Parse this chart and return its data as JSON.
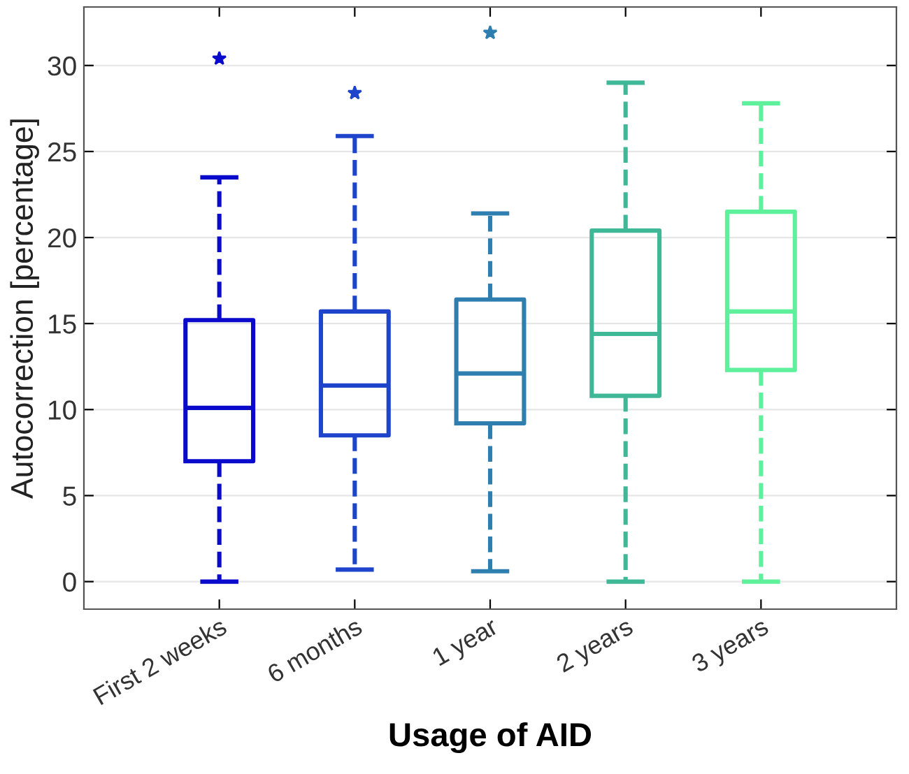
{
  "chart_data": {
    "type": "box",
    "xlabel": "Usage of AID",
    "ylabel": "Autocorrection [percentage]",
    "categories": [
      "First 2 weeks",
      "6 months",
      "1 year",
      "2 years",
      "3 years"
    ],
    "colors": [
      "#0a0acc",
      "#1f44cc",
      "#2e7fb0",
      "#3fb898",
      "#5ef09a"
    ],
    "boxes": [
      {
        "low": 0,
        "q1": 7.0,
        "median": 10.1,
        "q3": 15.2,
        "high": 23.5,
        "outliers": [
          30.4
        ]
      },
      {
        "low": 0.7,
        "q1": 8.5,
        "median": 11.4,
        "q3": 15.7,
        "high": 25.9,
        "outliers": [
          28.4
        ]
      },
      {
        "low": 0.6,
        "q1": 9.2,
        "median": 12.1,
        "q3": 16.4,
        "high": 21.4,
        "outliers": [
          31.9
        ]
      },
      {
        "low": 0,
        "q1": 10.8,
        "median": 14.4,
        "q3": 20.4,
        "high": 29.0
      },
      {
        "low": 0,
        "q1": 12.3,
        "median": 15.7,
        "q3": 21.5,
        "high": 27.8
      }
    ],
    "ylim": [
      -1.6,
      33.4
    ],
    "yticks": [
      0,
      5,
      10,
      15,
      20,
      25,
      30
    ],
    "grid": "y",
    "line_style": "dashed"
  }
}
